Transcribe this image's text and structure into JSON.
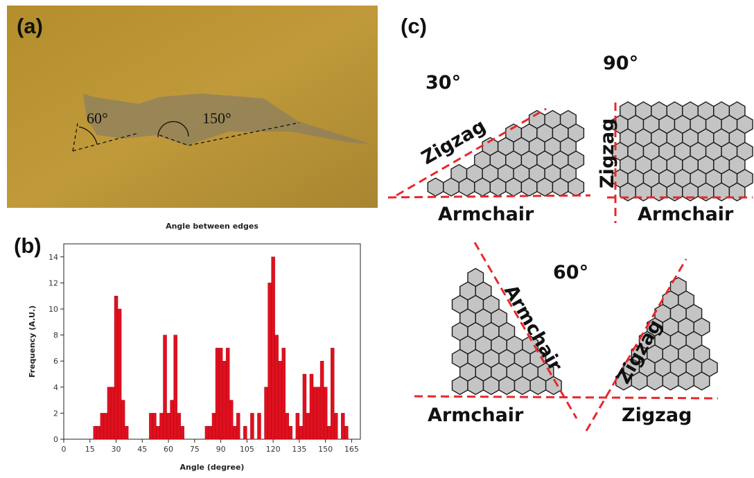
{
  "panels": {
    "a": {
      "label": "(a)",
      "annotations": [
        "60°",
        "150°"
      ]
    },
    "b": {
      "label": "(b)"
    },
    "c": {
      "label": "(c)",
      "diagrams": [
        {
          "angle": "30°",
          "edges": [
            "Zigzag",
            "Armchair"
          ]
        },
        {
          "angle": "90°",
          "edges": [
            "Zigzag",
            "Armchair"
          ]
        },
        {
          "angle": "60°",
          "edges": [
            "Armchair",
            "Armchair",
            "Zigzag",
            "Zigzag"
          ]
        }
      ]
    }
  },
  "chart_data": {
    "type": "histogram",
    "title": "Angle between edges",
    "x_label": "Angle (degree)",
    "y_label": "Frequency (A.U.)",
    "color": "#e0101e",
    "bins": [
      17,
      19,
      21,
      23,
      25,
      27,
      29,
      31,
      33,
      35,
      37,
      39,
      41,
      43,
      45,
      47,
      49,
      51,
      53,
      55,
      57,
      59,
      61,
      63,
      65,
      67,
      69,
      71,
      73,
      75,
      77,
      79,
      81,
      83,
      85,
      87,
      89,
      91,
      93,
      95,
      97,
      99,
      101,
      103,
      105,
      107,
      109,
      111,
      113,
      115,
      117,
      119,
      121,
      123,
      125,
      127,
      129,
      131,
      133,
      135,
      137,
      139,
      141,
      143,
      145,
      147,
      149,
      151,
      153,
      155,
      157,
      159,
      161,
      163
    ],
    "counts": [
      1,
      1,
      2,
      2,
      4,
      4,
      11,
      10,
      3,
      1,
      0,
      0,
      0,
      0,
      0,
      0,
      2,
      2,
      1,
      2,
      8,
      2,
      3,
      8,
      2,
      1,
      0,
      0,
      0,
      0,
      0,
      0,
      1,
      1,
      2,
      7,
      7,
      6,
      7,
      3,
      1,
      2,
      0,
      1,
      0,
      2,
      0,
      2,
      0,
      4,
      12,
      14,
      8,
      6,
      7,
      2,
      1,
      0,
      2,
      1,
      5,
      2,
      5,
      4,
      4,
      6,
      4,
      1,
      7,
      2,
      0,
      2,
      1
    ],
    "xlim": [
      0,
      170
    ],
    "ylim": [
      0,
      15
    ],
    "xticks": [
      0,
      15,
      30,
      45,
      60,
      75,
      90,
      105,
      120,
      135,
      150,
      165
    ],
    "yticks": [
      0,
      2,
      4,
      6,
      8,
      10,
      12,
      14
    ]
  }
}
